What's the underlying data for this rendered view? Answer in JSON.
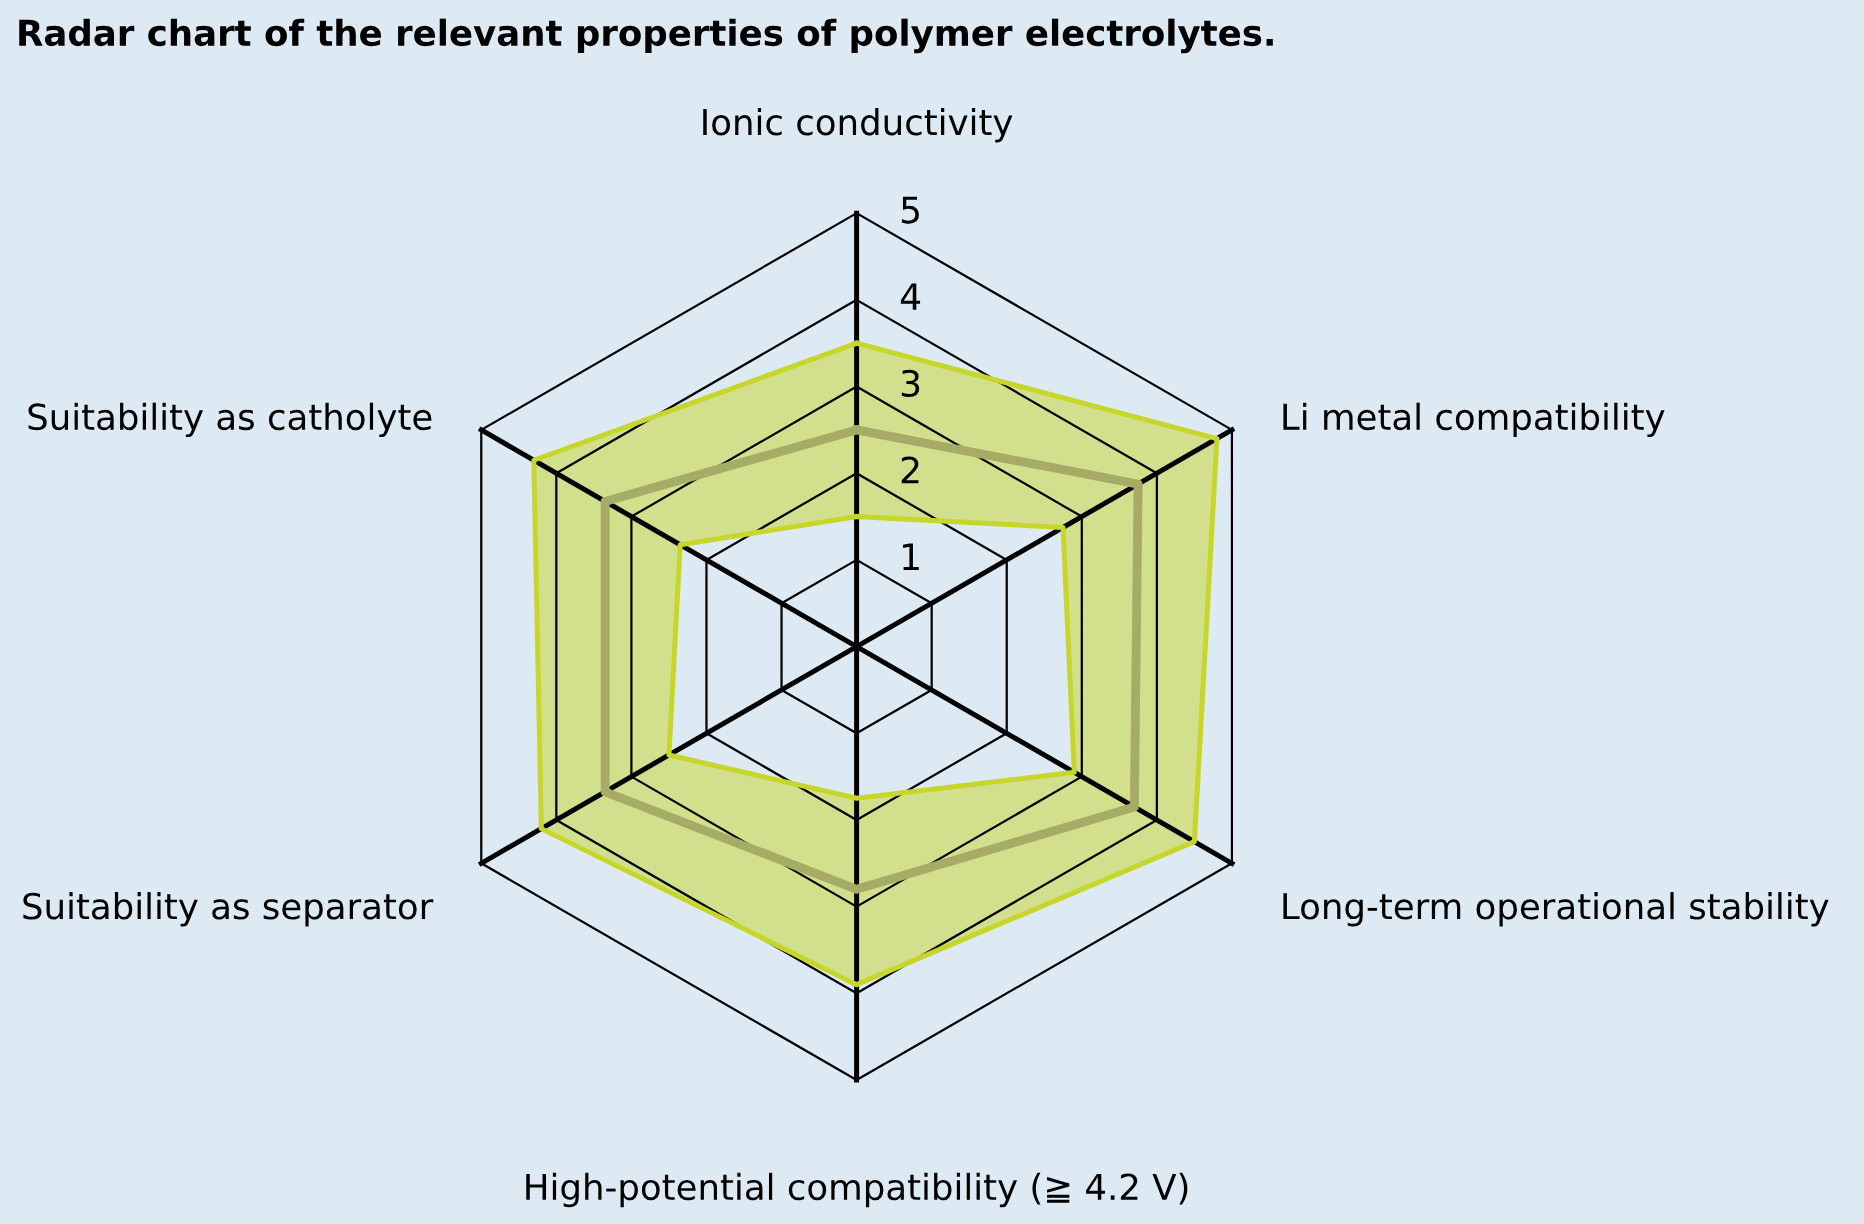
{
  "chart_data": {
    "type": "radar",
    "title": "Radar chart of the relevant properties of polymer electrolytes.",
    "categories": [
      "Ionic conductivity",
      "Li metal compatibility",
      "Long-term operational stability",
      "High-potential compatibility (≧ 4.2 V)",
      "Suitability as separator",
      "Suitability as catholyte"
    ],
    "ylim": [
      0,
      5
    ],
    "yticks": [
      1,
      2,
      3,
      4,
      5
    ],
    "grid": true,
    "series": [
      {
        "type": "area",
        "color": "#c7d62a",
        "values": [
          3.5,
          4.8,
          4.5,
          3.9,
          4.2,
          4.3
        ]
      },
      {
        "color": "#c7d62a",
        "values": [
          1.5,
          2.75,
          2.9,
          1.75,
          2.5,
          2.35
        ]
      },
      {
        "color": "#a6ab66",
        "values": [
          2.5,
          3.75,
          3.7,
          2.8,
          3.35,
          3.35
        ]
      }
    ]
  }
}
